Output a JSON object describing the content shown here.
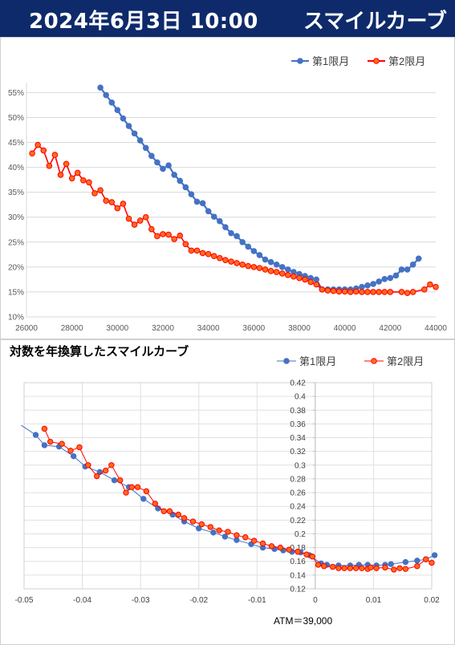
{
  "header": {
    "date": "2024年6月3日 10:00",
    "title": "スマイルカーブ"
  },
  "colors": {
    "header_bg": "#0e2a6b",
    "series1": "#4472c4",
    "series2": "#ff0000",
    "series2_fill": "#ff6a1a"
  },
  "chart_data": [
    {
      "type": "line",
      "title": "",
      "xlim": [
        26000,
        44000
      ],
      "ylim": [
        0.1,
        0.57
      ],
      "x_ticks": [
        26000,
        28000,
        30000,
        32000,
        34000,
        36000,
        38000,
        40000,
        42000,
        44000
      ],
      "y_ticks": [
        0.1,
        0.15,
        0.2,
        0.25,
        0.3,
        0.35,
        0.4,
        0.45,
        0.5,
        0.55
      ],
      "x_tick_labels": [
        "26000",
        "28000",
        "30000",
        "32000",
        "34000",
        "36000",
        "38000",
        "40000",
        "42000",
        "44000"
      ],
      "y_tick_labels": [
        "10%",
        "15%",
        "20%",
        "25%",
        "30%",
        "35%",
        "40%",
        "45%",
        "50%",
        "55%"
      ],
      "legend": "top-right",
      "grid": "horizontal",
      "series": [
        {
          "name": "第1限月",
          "x": [
            29250,
            29500,
            29750,
            30000,
            30250,
            30500,
            30750,
            31000,
            31250,
            31500,
            31750,
            32000,
            32250,
            32500,
            32750,
            33000,
            33250,
            33500,
            33750,
            34000,
            34250,
            34500,
            34750,
            35000,
            35250,
            35500,
            35750,
            36000,
            36250,
            36500,
            36750,
            37000,
            37250,
            37500,
            37750,
            38000,
            38250,
            38500,
            38750,
            39000,
            39250,
            39500,
            39750,
            40000,
            40250,
            40500,
            40750,
            41000,
            41250,
            41500,
            41750,
            42000,
            42250,
            42500,
            42750,
            43000,
            43250
          ],
          "y": [
            0.56,
            0.545,
            0.53,
            0.515,
            0.498,
            0.483,
            0.468,
            0.454,
            0.439,
            0.423,
            0.41,
            0.397,
            0.404,
            0.385,
            0.373,
            0.36,
            0.346,
            0.331,
            0.328,
            0.312,
            0.301,
            0.292,
            0.28,
            0.268,
            0.262,
            0.25,
            0.241,
            0.232,
            0.224,
            0.215,
            0.21,
            0.205,
            0.2,
            0.195,
            0.19,
            0.186,
            0.182,
            0.178,
            0.175,
            0.155,
            0.155,
            0.155,
            0.155,
            0.155,
            0.155,
            0.157,
            0.16,
            0.163,
            0.166,
            0.171,
            0.176,
            0.178,
            0.183,
            0.195,
            0.195,
            0.205,
            0.217
          ]
        },
        {
          "name": "第2限月",
          "x": [
            26250,
            26500,
            26750,
            27000,
            27250,
            27500,
            27750,
            28000,
            28250,
            28500,
            28750,
            29000,
            29250,
            29500,
            29750,
            30000,
            30250,
            30500,
            30750,
            31000,
            31250,
            31500,
            31750,
            32000,
            32250,
            32500,
            32750,
            33000,
            33250,
            33500,
            33750,
            34000,
            34250,
            34500,
            34750,
            35000,
            35250,
            35500,
            35750,
            36000,
            36250,
            36500,
            36750,
            37000,
            37250,
            37500,
            37750,
            38000,
            38250,
            38500,
            38750,
            39000,
            39250,
            39500,
            39750,
            40000,
            40250,
            40500,
            40750,
            41000,
            41250,
            41500,
            41750,
            42000,
            42500,
            42750,
            43000,
            43500,
            43750,
            44000
          ],
          "y": [
            0.428,
            0.445,
            0.434,
            0.403,
            0.425,
            0.385,
            0.407,
            0.378,
            0.389,
            0.374,
            0.37,
            0.348,
            0.354,
            0.333,
            0.33,
            0.318,
            0.327,
            0.297,
            0.285,
            0.293,
            0.3,
            0.276,
            0.262,
            0.266,
            0.265,
            0.256,
            0.263,
            0.246,
            0.233,
            0.233,
            0.228,
            0.226,
            0.222,
            0.218,
            0.214,
            0.211,
            0.208,
            0.205,
            0.202,
            0.2,
            0.198,
            0.195,
            0.192,
            0.19,
            0.187,
            0.184,
            0.181,
            0.178,
            0.175,
            0.17,
            0.165,
            0.155,
            0.153,
            0.152,
            0.151,
            0.151,
            0.15,
            0.151,
            0.15,
            0.15,
            0.15,
            0.15,
            0.15,
            0.15,
            0.15,
            0.148,
            0.15,
            0.155,
            0.165,
            0.16
          ]
        }
      ]
    },
    {
      "type": "scatter",
      "title": "対数を年換算したスマイルカーブ",
      "xlim": [
        -0.05,
        0.02
      ],
      "ylim": [
        0.12,
        0.42
      ],
      "x_ticks": [
        -0.05,
        -0.04,
        -0.03,
        -0.02,
        -0.01,
        0,
        0.01,
        0.02
      ],
      "y_ticks": [
        0.12,
        0.14,
        0.16,
        0.18,
        0.2,
        0.22,
        0.24,
        0.26,
        0.28,
        0.3,
        0.32,
        0.34,
        0.36,
        0.38,
        0.4,
        0.42
      ],
      "x_tick_labels": [
        "-0.05",
        "-0.04",
        "-0.03",
        "-0.02",
        "-0.01",
        "0",
        "0.01",
        "0.02"
      ],
      "y_tick_labels": [
        "0.12",
        "0.14",
        "0.16",
        "0.18",
        "0.2",
        "0.22",
        "0.24",
        "0.26",
        "0.28",
        "0.3",
        "0.32",
        "0.34",
        "0.36",
        "0.38",
        "0.4",
        "0.42"
      ],
      "legend": "top-right",
      "grid": "both",
      "annotation": "ATM＝39,000",
      "series": [
        {
          "name": "第1限月",
          "x": [
            -0.0505,
            -0.048,
            -0.0465,
            -0.044,
            -0.0415,
            -0.0395,
            -0.037,
            -0.0345,
            -0.032,
            -0.0295,
            -0.027,
            -0.0245,
            -0.0225,
            -0.02,
            -0.0175,
            -0.0155,
            -0.0135,
            -0.011,
            -0.009,
            -0.007,
            -0.0055,
            -0.004,
            -0.0025,
            -0.001,
            0.001,
            0.002,
            0.004,
            0.006,
            0.0075,
            0.009,
            0.0105,
            0.012,
            0.013,
            0.0155,
            0.0175,
            0.019,
            0.0205
          ],
          "y": [
            0.358,
            0.344,
            0.329,
            0.327,
            0.313,
            0.298,
            0.29,
            0.278,
            0.268,
            0.251,
            0.237,
            0.228,
            0.218,
            0.208,
            0.202,
            0.196,
            0.191,
            0.185,
            0.18,
            0.178,
            0.176,
            0.174,
            0.173,
            0.169,
            0.157,
            0.155,
            0.154,
            0.154,
            0.155,
            0.155,
            0.154,
            0.155,
            0.156,
            0.159,
            0.161,
            0.163,
            0.169
          ]
        },
        {
          "name": "第2限月",
          "x": [
            -0.0465,
            -0.0455,
            -0.0435,
            -0.042,
            -0.0405,
            -0.039,
            -0.0375,
            -0.036,
            -0.035,
            -0.0335,
            -0.0325,
            -0.0315,
            -0.0305,
            -0.029,
            -0.0275,
            -0.026,
            -0.025,
            -0.0235,
            -0.0225,
            -0.021,
            -0.0195,
            -0.018,
            -0.0165,
            -0.015,
            -0.0135,
            -0.012,
            -0.0105,
            -0.009,
            -0.0075,
            -0.006,
            -0.0045,
            -0.003,
            -0.0015,
            -0.0005,
            0.0005,
            0.0015,
            0.003,
            0.004,
            0.005,
            0.006,
            0.007,
            0.008,
            0.009,
            0.0095,
            0.0105,
            0.012,
            0.0135,
            0.0145,
            0.0155,
            0.0175,
            0.019,
            0.02
          ],
          "y": [
            0.353,
            0.334,
            0.331,
            0.321,
            0.326,
            0.3,
            0.284,
            0.292,
            0.3,
            0.278,
            0.26,
            0.268,
            0.268,
            0.262,
            0.244,
            0.233,
            0.233,
            0.228,
            0.223,
            0.218,
            0.214,
            0.21,
            0.205,
            0.203,
            0.198,
            0.195,
            0.19,
            0.186,
            0.182,
            0.18,
            0.177,
            0.174,
            0.17,
            0.167,
            0.155,
            0.153,
            0.152,
            0.15,
            0.15,
            0.15,
            0.15,
            0.15,
            0.149,
            0.151,
            0.15,
            0.151,
            0.148,
            0.15,
            0.149,
            0.153,
            0.163,
            0.158
          ]
        }
      ]
    }
  ]
}
